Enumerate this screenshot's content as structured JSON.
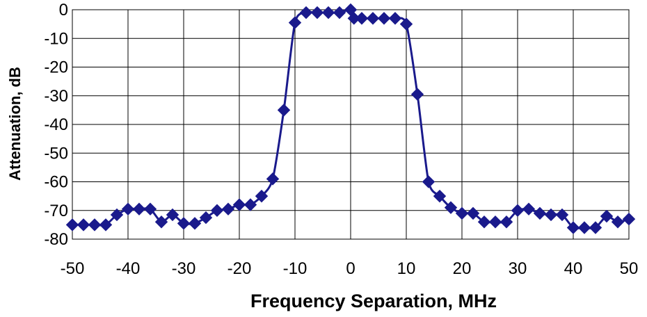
{
  "chart_data": {
    "type": "line",
    "title": "",
    "xlabel": "Frequency Separation, MHz",
    "ylabel": "Attenuation, dB",
    "xlim": [
      -50,
      50
    ],
    "ylim": [
      -80,
      0
    ],
    "x_ticks": [
      -50,
      -40,
      -30,
      -20,
      -10,
      0,
      10,
      20,
      30,
      40,
      50
    ],
    "y_ticks": [
      0,
      -10,
      -20,
      -30,
      -40,
      -50,
      -60,
      -70,
      -80
    ],
    "x_tick_labels": [
      "-50",
      "-40",
      "-30",
      "-20",
      "-10",
      "0",
      "10",
      "20",
      "30",
      "40",
      "50"
    ],
    "y_tick_labels": [
      "0",
      "-10",
      "-20",
      "-30",
      "-40",
      "-50",
      "-60",
      "-70",
      "-80"
    ],
    "grid": true,
    "legend": false,
    "series_color": "#1a1a8c",
    "marker": "diamond",
    "series": [
      {
        "x": [
          -50,
          -48,
          -46,
          -44,
          -42,
          -40,
          -38,
          -36,
          -34,
          -32,
          -30,
          -28,
          -26,
          -24,
          -22,
          -20,
          -18,
          -16,
          -14,
          -12,
          -10,
          -8,
          -6,
          -4,
          -2,
          0,
          0.6,
          2,
          4,
          6,
          8,
          10,
          12,
          14,
          16,
          18,
          20,
          22,
          24,
          26,
          28,
          30,
          32,
          34,
          36,
          38,
          40,
          42,
          44,
          46,
          48,
          50
        ],
        "y": [
          -75,
          -75,
          -75,
          -75,
          -71.5,
          -69.5,
          -69.5,
          -69.5,
          -74,
          -71.5,
          -74.5,
          -74.5,
          -72.5,
          -70,
          -69.5,
          -68,
          -68,
          -65,
          -59,
          -35,
          -4.5,
          -1,
          -1,
          -1,
          -1,
          0,
          -3,
          -3,
          -3,
          -3,
          -3,
          -5,
          -29.5,
          -60,
          -65,
          -69,
          -71,
          -71,
          -74,
          -74,
          -74,
          -70,
          -69.5,
          -71,
          -71.5,
          -71.5,
          -76,
          -76,
          -76,
          -72,
          -74,
          -73
        ]
      }
    ]
  }
}
